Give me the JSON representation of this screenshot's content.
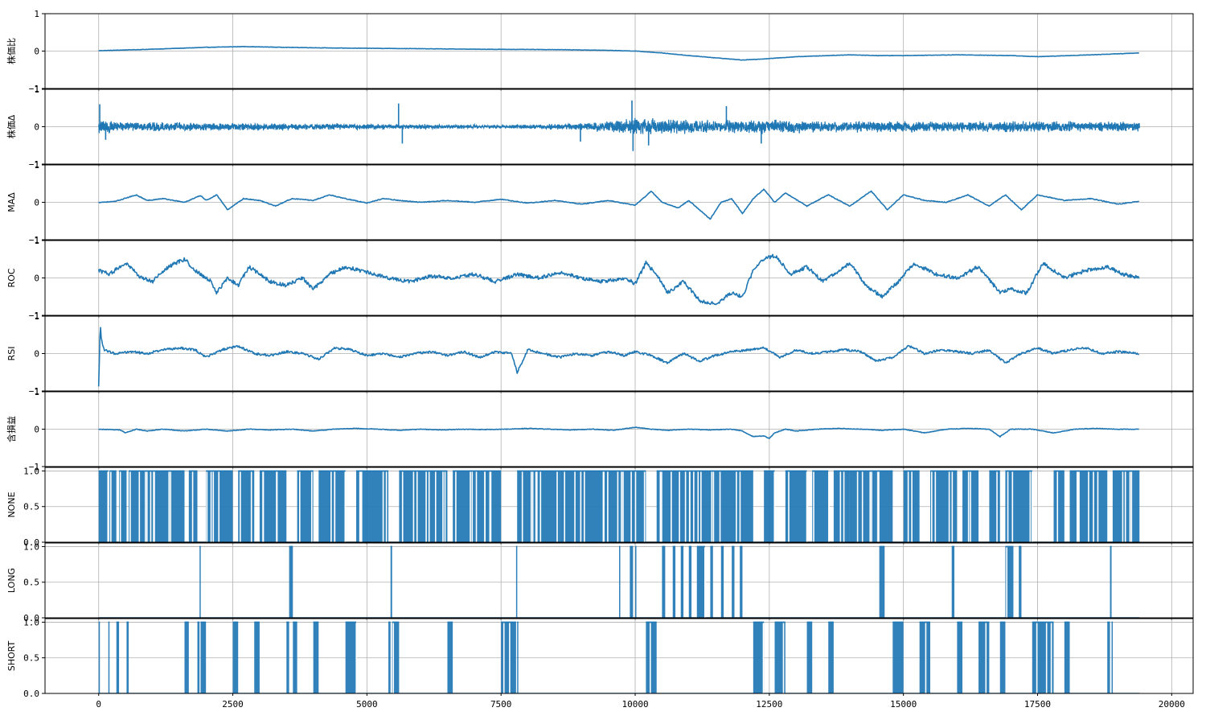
{
  "chart_data": {
    "type": "line",
    "layout": "vertically stacked subplots sharing x axis",
    "grid": true,
    "line_color": "#1f77b4",
    "x_ticks": [
      0,
      2500,
      5000,
      7500,
      10000,
      12500,
      15000,
      17500,
      20000
    ],
    "x_tick_labels": [
      "0",
      "2500",
      "5000",
      "7500",
      "10000",
      "12500",
      "15000",
      "17500",
      "20000"
    ],
    "xlim": [
      -1000,
      20400
    ],
    "data_xmax": 19400,
    "panels": [
      {
        "name": "株価比",
        "type": "line",
        "ylim": [
          -1,
          1
        ],
        "y_ticks": [
          -1,
          0,
          1
        ],
        "y_tick_labels": [
          "−1",
          "0",
          "1"
        ],
        "x": [
          0,
          1000,
          2000,
          2700,
          3500,
          4500,
          5500,
          7000,
          8500,
          9500,
          10000,
          10500,
          11000,
          11500,
          12000,
          12500,
          13000,
          14000,
          14500,
          15000,
          16000,
          17000,
          17500,
          18500,
          19400
        ],
        "values": [
          0.01,
          0.05,
          0.1,
          0.12,
          0.1,
          0.08,
          0.07,
          0.05,
          0.04,
          0.02,
          0.0,
          -0.05,
          -0.12,
          -0.18,
          -0.24,
          -0.2,
          -0.15,
          -0.1,
          -0.12,
          -0.12,
          -0.1,
          -0.12,
          -0.15,
          -0.1,
          -0.05
        ],
        "noise": 0.005
      },
      {
        "name": "株価Δ",
        "type": "noise",
        "ylim": [
          -1,
          1
        ],
        "y_ticks": [
          -1,
          0,
          1
        ],
        "y_tick_labels": [
          "−1",
          "0",
          "1"
        ],
        "amplitude_points": {
          "x": [
            0,
            300,
            2000,
            5000,
            7500,
            9000,
            10000,
            11000,
            12500,
            14000,
            17000,
            19400
          ],
          "values": [
            0.25,
            0.15,
            0.12,
            0.08,
            0.05,
            0.1,
            0.25,
            0.2,
            0.2,
            0.16,
            0.16,
            0.14
          ]
        },
        "spikes": [
          {
            "x": 20,
            "y": 0.6
          },
          {
            "x": 130,
            "y": -0.35
          },
          {
            "x": 5590,
            "y": 0.62
          },
          {
            "x": 5660,
            "y": -0.45
          },
          {
            "x": 8980,
            "y": -0.4
          },
          {
            "x": 9940,
            "y": 0.7
          },
          {
            "x": 9960,
            "y": -0.65
          },
          {
            "x": 10250,
            "y": -0.5
          },
          {
            "x": 11700,
            "y": 0.55
          },
          {
            "x": 12350,
            "y": -0.45
          }
        ]
      },
      {
        "name": "MAΔ",
        "type": "line",
        "ylim": [
          -1,
          1
        ],
        "y_ticks": [
          -1,
          0,
          1
        ],
        "y_tick_labels": [
          "−1",
          "0",
          "1"
        ],
        "x": [
          0,
          300,
          700,
          900,
          1200,
          1600,
          1900,
          2000,
          2200,
          2400,
          2700,
          3000,
          3300,
          3600,
          4000,
          4300,
          4600,
          5000,
          5300,
          5600,
          6000,
          6500,
          7000,
          7500,
          8000,
          8500,
          9000,
          9500,
          10000,
          10300,
          10500,
          10800,
          11000,
          11200,
          11400,
          11600,
          11800,
          12000,
          12200,
          12400,
          12600,
          12800,
          13200,
          13600,
          14000,
          14400,
          14700,
          15000,
          15400,
          15800,
          16200,
          16600,
          16900,
          17200,
          17500,
          18000,
          18500,
          19000,
          19400
        ],
        "values": [
          0.0,
          0.02,
          0.2,
          0.05,
          0.1,
          0.0,
          0.18,
          0.05,
          0.2,
          -0.2,
          0.1,
          0.05,
          -0.1,
          0.1,
          0.05,
          0.2,
          0.1,
          -0.02,
          0.1,
          0.05,
          0.0,
          0.05,
          0.0,
          0.08,
          -0.02,
          0.05,
          -0.05,
          0.05,
          -0.08,
          0.3,
          0.0,
          -0.15,
          0.05,
          -0.2,
          -0.45,
          0.0,
          0.1,
          -0.3,
          0.1,
          0.35,
          0.0,
          0.25,
          -0.1,
          0.2,
          -0.1,
          0.3,
          -0.2,
          0.2,
          0.05,
          0.0,
          0.2,
          -0.1,
          0.2,
          -0.2,
          0.2,
          0.05,
          0.1,
          -0.05,
          0.03
        ],
        "noise": 0.01
      },
      {
        "name": "ROC",
        "type": "line",
        "ylim": [
          -1,
          1
        ],
        "y_ticks": [
          -1,
          0,
          1
        ],
        "y_tick_labels": [
          "−1",
          "0",
          "1"
        ],
        "x": [
          0,
          200,
          500,
          800,
          1000,
          1300,
          1600,
          1800,
          2100,
          2200,
          2400,
          2600,
          2800,
          3000,
          3200,
          3500,
          3800,
          4000,
          4300,
          4600,
          5000,
          5400,
          5800,
          6200,
          6600,
          7000,
          7400,
          7800,
          8200,
          8600,
          9000,
          9400,
          9800,
          10000,
          10200,
          10400,
          10600,
          10900,
          11200,
          11500,
          11800,
          12000,
          12200,
          12400,
          12600,
          12900,
          13200,
          13500,
          13800,
          14000,
          14300,
          14600,
          14900,
          15200,
          15600,
          16000,
          16400,
          16800,
          17000,
          17300,
          17600,
          18000,
          18400,
          18800,
          19100,
          19400
        ],
        "values": [
          0.2,
          0.1,
          0.4,
          0.0,
          -0.1,
          0.3,
          0.5,
          0.2,
          -0.1,
          -0.4,
          0.0,
          -0.2,
          0.3,
          0.1,
          -0.1,
          -0.2,
          0.0,
          -0.3,
          0.1,
          0.3,
          0.15,
          0.0,
          -0.1,
          0.05,
          0.0,
          0.1,
          -0.1,
          0.1,
          0.0,
          0.15,
          0.0,
          -0.1,
          0.0,
          -0.15,
          0.4,
          0.1,
          -0.4,
          -0.1,
          -0.6,
          -0.7,
          -0.4,
          -0.5,
          0.2,
          0.5,
          0.6,
          0.1,
          0.3,
          -0.1,
          0.2,
          0.4,
          -0.2,
          -0.5,
          -0.1,
          0.4,
          0.1,
          0.0,
          0.3,
          -0.4,
          -0.3,
          -0.4,
          0.4,
          0.0,
          0.2,
          0.3,
          0.1,
          0.0
        ],
        "noise": 0.05
      },
      {
        "name": "RSI",
        "type": "line",
        "ylim": [
          -1,
          1
        ],
        "y_ticks": [
          -1,
          0,
          1
        ],
        "y_tick_labels": [
          "−1",
          "0",
          "1"
        ],
        "x": [
          0,
          30,
          50,
          100,
          300,
          600,
          900,
          1200,
          1500,
          1800,
          2000,
          2300,
          2600,
          2900,
          3200,
          3500,
          3800,
          4100,
          4400,
          4700,
          5000,
          5300,
          5600,
          5900,
          6200,
          6500,
          6800,
          7100,
          7400,
          7700,
          7800,
          8000,
          8300,
          8600,
          8900,
          9200,
          9500,
          9800,
          10000,
          10300,
          10600,
          10900,
          11200,
          11500,
          11800,
          12100,
          12400,
          12700,
          13000,
          13300,
          13600,
          13900,
          14200,
          14500,
          14800,
          15100,
          15400,
          15700,
          16000,
          16300,
          16600,
          16900,
          17200,
          17500,
          17800,
          18100,
          18400,
          18700,
          19000,
          19400
        ],
        "values": [
          -0.9,
          0.8,
          0.4,
          0.1,
          0.0,
          0.05,
          0.0,
          0.1,
          0.15,
          0.1,
          -0.1,
          0.1,
          0.2,
          0.0,
          -0.05,
          0.05,
          0.0,
          -0.15,
          0.15,
          0.1,
          -0.05,
          0.0,
          -0.1,
          0.0,
          0.05,
          -0.05,
          0.05,
          -0.1,
          0.05,
          0.0,
          -0.5,
          0.1,
          0.0,
          -0.1,
          0.0,
          -0.05,
          0.05,
          -0.05,
          0.05,
          -0.05,
          -0.25,
          0.0,
          -0.2,
          -0.05,
          0.05,
          0.1,
          0.15,
          -0.1,
          0.1,
          0.0,
          0.05,
          0.1,
          0.05,
          -0.2,
          -0.1,
          0.2,
          0.0,
          0.1,
          0.05,
          0.0,
          0.1,
          -0.25,
          0.0,
          0.15,
          0.0,
          0.1,
          0.15,
          0.0,
          0.05,
          0.0
        ],
        "noise": 0.03
      },
      {
        "name": "含損益",
        "type": "line",
        "ylim": [
          -1,
          1
        ],
        "y_ticks": [
          -1,
          0,
          1
        ],
        "y_tick_labels": [
          "−1",
          "0",
          "1"
        ],
        "x": [
          0,
          400,
          500,
          700,
          900,
          1200,
          1600,
          2000,
          2400,
          2800,
          3200,
          3600,
          4000,
          4400,
          4800,
          5200,
          5600,
          6000,
          6400,
          6800,
          7200,
          7600,
          8000,
          8400,
          8800,
          9200,
          9600,
          10000,
          10300,
          10600,
          11000,
          11400,
          11800,
          12000,
          12200,
          12400,
          12500,
          12600,
          12800,
          13000,
          13400,
          13800,
          14200,
          14600,
          15000,
          15400,
          15800,
          16200,
          16600,
          16800,
          17000,
          17400,
          17800,
          18200,
          18600,
          19000,
          19400
        ],
        "values": [
          0.0,
          -0.02,
          -0.1,
          0.0,
          -0.05,
          0.0,
          -0.05,
          0.0,
          -0.05,
          0.0,
          -0.02,
          0.0,
          -0.05,
          0.0,
          0.02,
          0.0,
          -0.03,
          0.0,
          -0.02,
          0.0,
          -0.01,
          0.0,
          0.02,
          0.0,
          -0.02,
          0.0,
          -0.03,
          0.05,
          0.0,
          -0.03,
          0.0,
          -0.02,
          0.0,
          -0.05,
          -0.2,
          -0.18,
          -0.25,
          -0.1,
          0.0,
          -0.05,
          0.0,
          0.02,
          0.0,
          -0.03,
          0.0,
          -0.1,
          0.0,
          0.02,
          0.0,
          -0.2,
          0.0,
          0.0,
          -0.1,
          0.0,
          0.02,
          0.0,
          0.0
        ],
        "noise": 0.008
      },
      {
        "name": "NONE",
        "type": "binary",
        "ylim": [
          0,
          1.05
        ],
        "y_ticks": [
          0,
          0.5,
          1
        ],
        "y_tick_labels": [
          "0.0",
          "0.5",
          "1.0"
        ],
        "one_intervals": [
          [
            0,
            180
          ],
          [
            200,
            330
          ],
          [
            380,
            520
          ],
          [
            560,
            1600
          ],
          [
            1680,
            1840
          ],
          [
            2000,
            2500
          ],
          [
            2600,
            2900
          ],
          [
            3000,
            3500
          ],
          [
            3700,
            4000
          ],
          [
            4100,
            4600
          ],
          [
            4800,
            5400
          ],
          [
            5600,
            6500
          ],
          [
            6600,
            7500
          ],
          [
            7800,
            8600
          ],
          [
            8600,
            9000
          ],
          [
            9000,
            10000
          ],
          [
            10000,
            10200
          ],
          [
            10400,
            11000
          ],
          [
            11000,
            12200
          ],
          [
            12400,
            12600
          ],
          [
            12800,
            13200
          ],
          [
            13300,
            13600
          ],
          [
            13700,
            14000
          ],
          [
            14000,
            14500
          ],
          [
            14500,
            14800
          ],
          [
            15000,
            15300
          ],
          [
            15500,
            16000
          ],
          [
            16100,
            16400
          ],
          [
            16600,
            16800
          ],
          [
            16900,
            17400
          ],
          [
            17800,
            18000
          ],
          [
            18100,
            18800
          ],
          [
            18900,
            19400
          ]
        ]
      },
      {
        "name": "LONG",
        "type": "binary",
        "ylim": [
          0,
          1.05
        ],
        "y_ticks": [
          0,
          0.5,
          1
        ],
        "y_tick_labels": [
          "0.0",
          "0.5",
          "1.0"
        ],
        "one_intervals": [
          [
            1880,
            1900
          ],
          [
            3550,
            3620
          ],
          [
            5440,
            5470
          ],
          [
            7780,
            7800
          ],
          [
            9700,
            9720
          ],
          [
            9900,
            9960
          ],
          [
            10000,
            10020
          ],
          [
            10500,
            10560
          ],
          [
            10700,
            10750
          ],
          [
            10850,
            10900
          ],
          [
            11000,
            11050
          ],
          [
            11150,
            11300
          ],
          [
            11400,
            11450
          ],
          [
            11600,
            11650
          ],
          [
            11800,
            11850
          ],
          [
            11950,
            12000
          ],
          [
            14550,
            14650
          ],
          [
            15900,
            15950
          ],
          [
            16900,
            17050
          ],
          [
            17150,
            17200
          ],
          [
            18850,
            18880
          ]
        ]
      },
      {
        "name": "SHORT",
        "type": "binary",
        "ylim": [
          0,
          1.05
        ],
        "y_ticks": [
          0,
          0.5,
          1
        ],
        "y_tick_labels": [
          "0.0",
          "0.5",
          "1.0"
        ],
        "one_intervals": [
          [
            0,
            10
          ],
          [
            180,
            200
          ],
          [
            330,
            380
          ],
          [
            520,
            560
          ],
          [
            1600,
            1680
          ],
          [
            1840,
            1880
          ],
          [
            1900,
            2000
          ],
          [
            2500,
            2600
          ],
          [
            2900,
            3000
          ],
          [
            3500,
            3550
          ],
          [
            3620,
            3700
          ],
          [
            4000,
            4100
          ],
          [
            4600,
            4800
          ],
          [
            5400,
            5440
          ],
          [
            5470,
            5600
          ],
          [
            6500,
            6600
          ],
          [
            7500,
            7780
          ],
          [
            7800,
            7800
          ],
          [
            10200,
            10400
          ],
          [
            12200,
            12400
          ],
          [
            12600,
            12800
          ],
          [
            13200,
            13300
          ],
          [
            13600,
            13700
          ],
          [
            14800,
            14900
          ],
          [
            14900,
            15000
          ],
          [
            15300,
            15500
          ],
          [
            16000,
            16100
          ],
          [
            16400,
            16600
          ],
          [
            16800,
            16900
          ],
          [
            17400,
            17800
          ],
          [
            18000,
            18100
          ],
          [
            18800,
            18850
          ],
          [
            18880,
            18900
          ]
        ]
      }
    ]
  }
}
